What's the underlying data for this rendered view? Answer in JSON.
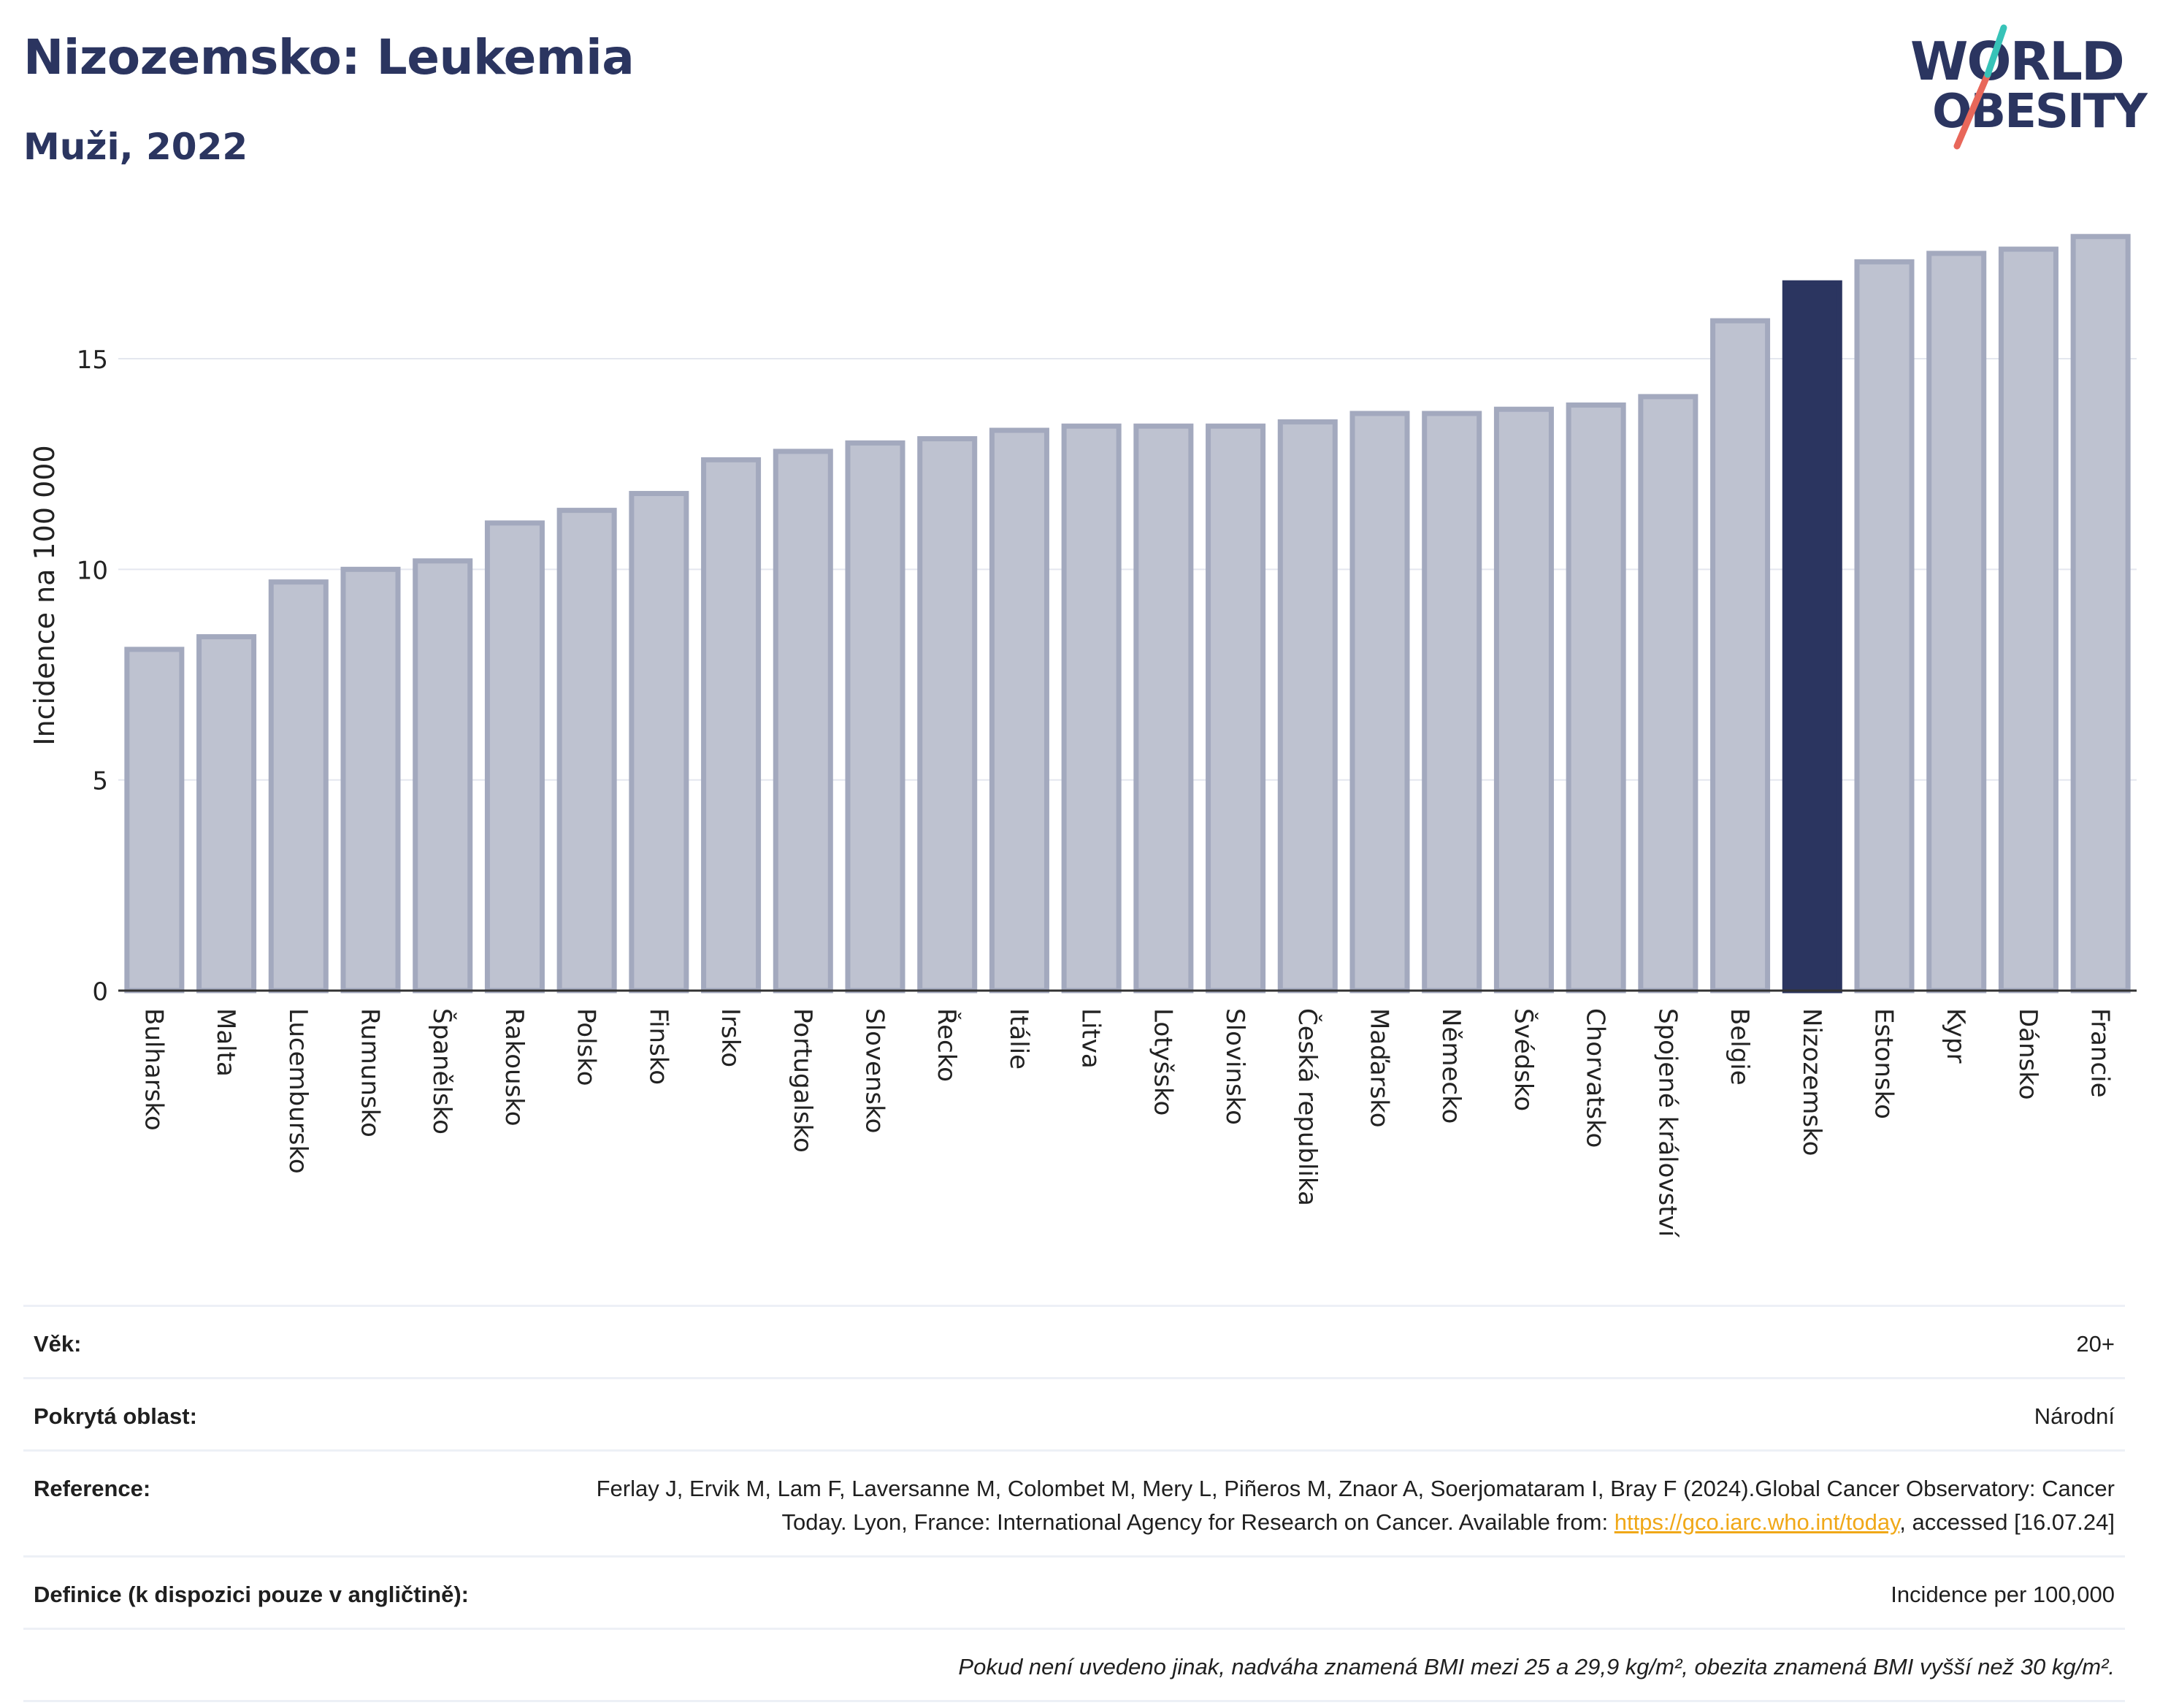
{
  "title": "Nizozemsko: Leukemia",
  "subtitle": "Muži, 2022",
  "logo": {
    "line1": "WORLD",
    "line2": "OBESITY"
  },
  "colors": {
    "bar": "#bec2d0",
    "bar_stroke": "#a3a9be",
    "highlight": "#2b3560",
    "axis": "#333333",
    "grid": "#e4e7ef"
  },
  "chart_data": {
    "type": "bar",
    "ylabel": "Incidence na 100 000",
    "xlabel": "",
    "ylim": [
      0,
      18
    ],
    "yticks": [
      0,
      5,
      10,
      15
    ],
    "grid": true,
    "highlight": "Nizozemsko",
    "categories": [
      "Bulharsko",
      "Malta",
      "Lucembursko",
      "Rumunsko",
      "Španělsko",
      "Rakousko",
      "Polsko",
      "Finsko",
      "Irsko",
      "Portugalsko",
      "Slovensko",
      "Řecko",
      "Itálie",
      "Litva",
      "Lotyšsko",
      "Slovinsko",
      "Česká republika",
      "Maďarsko",
      "Německo",
      "Švédsko",
      "Chorvatsko",
      "Spojené království",
      "Belgie",
      "Nizozemsko",
      "Estonsko",
      "Kypr",
      "Dánsko",
      "Francie"
    ],
    "values": [
      8.1,
      8.4,
      9.7,
      10.0,
      10.2,
      11.1,
      11.4,
      11.8,
      12.6,
      12.8,
      13.0,
      13.1,
      13.3,
      13.4,
      13.4,
      13.4,
      13.5,
      13.7,
      13.7,
      13.8,
      13.9,
      14.1,
      15.9,
      16.8,
      17.3,
      17.5,
      17.6,
      17.9
    ]
  },
  "meta": {
    "age_label": "Věk:",
    "age_value": "20+",
    "coverage_label": "Pokrytá oblast:",
    "coverage_value": "Národní",
    "reference_label": "Reference:",
    "reference_text": "Ferlay J, Ervik M, Lam F, Laversanne M, Colombet M, Mery L, Piñeros M, Znaor A, Soerjomataram I, Bray F (2024).Global Cancer Observatory: Cancer Today. Lyon, France: International Agency for Research on Cancer. Available from: ",
    "reference_link": "https://gco.iarc.who.int/today",
    "reference_after": ", accessed [16.07.24]",
    "definition_label": "Definice (k dispozici pouze v angličtině):",
    "definition_value": "Incidence per 100,000",
    "note": "Pokud není uvedeno jinak, nadváha znamená BMI mezi 25 a 29,9 kg/m², obezita znamená BMI vyšší než 30 kg/m²."
  }
}
